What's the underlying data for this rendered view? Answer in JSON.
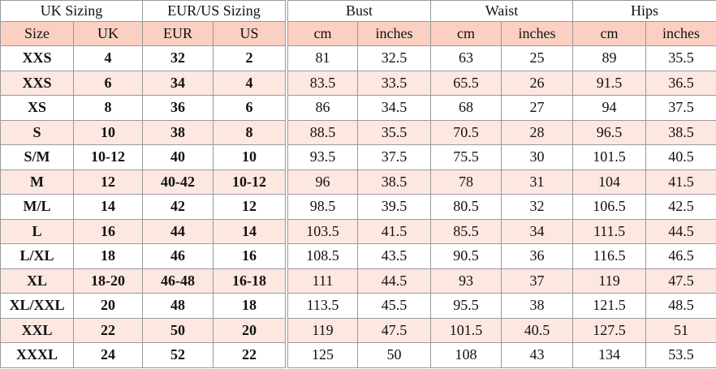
{
  "left": {
    "groups": [
      "UK Sizing",
      "EUR/US Sizing"
    ],
    "columns": [
      "Size",
      "UK",
      "EUR",
      "US"
    ],
    "rows": [
      [
        "XXS",
        "4",
        "32",
        "2"
      ],
      [
        "XXS",
        "6",
        "34",
        "4"
      ],
      [
        "XS",
        "8",
        "36",
        "6"
      ],
      [
        "S",
        "10",
        "38",
        "8"
      ],
      [
        "S/M",
        "10-12",
        "40",
        "10"
      ],
      [
        "M",
        "12",
        "40-42",
        "10-12"
      ],
      [
        "M/L",
        "14",
        "42",
        "12"
      ],
      [
        "L",
        "16",
        "44",
        "14"
      ],
      [
        "L/XL",
        "18",
        "46",
        "16"
      ],
      [
        "XL",
        "18-20",
        "46-48",
        "16-18"
      ],
      [
        "XL/XXL",
        "20",
        "48",
        "18"
      ],
      [
        "XXL",
        "22",
        "50",
        "20"
      ],
      [
        "XXXL",
        "24",
        "52",
        "22"
      ]
    ]
  },
  "right": {
    "groups": [
      "Bust",
      "Waist",
      "Hips"
    ],
    "columns": [
      "cm",
      "inches",
      "cm",
      "inches",
      "cm",
      "inches"
    ],
    "rows": [
      [
        "81",
        "32.5",
        "63",
        "25",
        "89",
        "35.5"
      ],
      [
        "83.5",
        "33.5",
        "65.5",
        "26",
        "91.5",
        "36.5"
      ],
      [
        "86",
        "34.5",
        "68",
        "27",
        "94",
        "37.5"
      ],
      [
        "88.5",
        "35.5",
        "70.5",
        "28",
        "96.5",
        "38.5"
      ],
      [
        "93.5",
        "37.5",
        "75.5",
        "30",
        "101.5",
        "40.5"
      ],
      [
        "96",
        "38.5",
        "78",
        "31",
        "104",
        "41.5"
      ],
      [
        "98.5",
        "39.5",
        "80.5",
        "32",
        "106.5",
        "42.5"
      ],
      [
        "103.5",
        "41.5",
        "85.5",
        "34",
        "111.5",
        "44.5"
      ],
      [
        "108.5",
        "43.5",
        "90.5",
        "36",
        "116.5",
        "46.5"
      ],
      [
        "111",
        "44.5",
        "93",
        "37",
        "119",
        "47.5"
      ],
      [
        "113.5",
        "45.5",
        "95.5",
        "38",
        "121.5",
        "48.5"
      ],
      [
        "119",
        "47.5",
        "101.5",
        "40.5",
        "127.5",
        "51"
      ],
      [
        "125",
        "50",
        "108",
        "43",
        "134",
        "53.5"
      ]
    ]
  }
}
